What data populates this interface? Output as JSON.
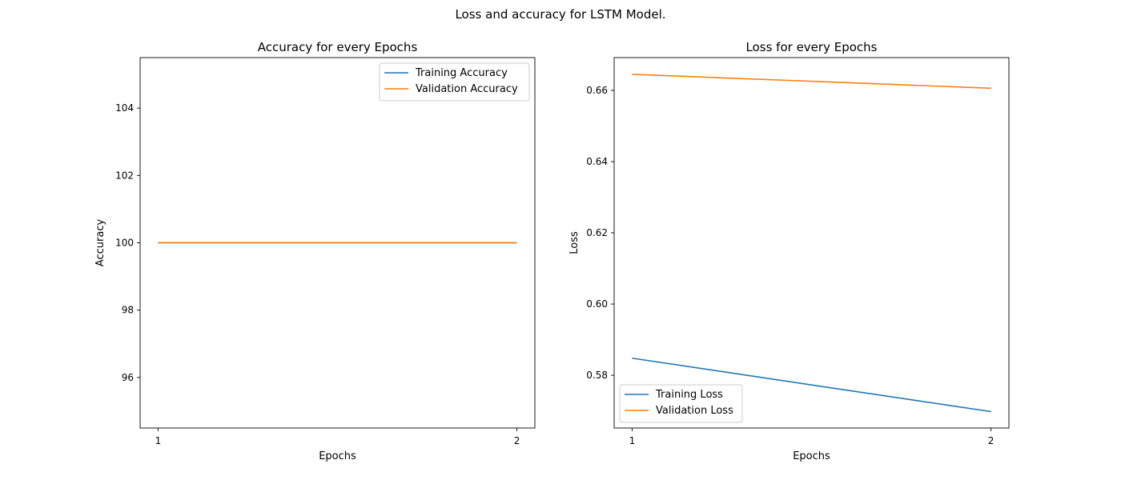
{
  "figure": {
    "suptitle": "Loss and accuracy for LSTM Model."
  },
  "chart_data": [
    {
      "type": "line",
      "title": "Accuracy for every Epochs",
      "xlabel": "Epochs",
      "ylabel": "Accuracy",
      "x": [
        1,
        2
      ],
      "xticks": [
        "1",
        "2"
      ],
      "xlim": [
        0.95,
        2.05
      ],
      "ylim": [
        94.5,
        105.5
      ],
      "yticks": [
        96,
        98,
        100,
        102,
        104
      ],
      "legend": "upper right",
      "grid": false,
      "series": [
        {
          "name": "Training Accuracy",
          "values": [
            100,
            100
          ],
          "color": "#1f77b4"
        },
        {
          "name": "Validation Accuracy",
          "values": [
            100,
            100
          ],
          "color": "#ff7f0e"
        }
      ]
    },
    {
      "type": "line",
      "title": "Loss for every Epochs",
      "xlabel": "Epochs",
      "ylabel": "Loss",
      "x": [
        1,
        2
      ],
      "xticks": [
        "1",
        "2"
      ],
      "xlim": [
        0.95,
        2.05
      ],
      "ylim": [
        0.5652,
        0.6692
      ],
      "yticks": [
        0.58,
        0.6,
        0.62,
        0.64,
        0.66
      ],
      "legend": "lower left",
      "grid": false,
      "series": [
        {
          "name": "Training Loss",
          "values": [
            0.5848,
            0.5698
          ],
          "color": "#1f77b4"
        },
        {
          "name": "Validation Loss",
          "values": [
            0.6645,
            0.6606
          ],
          "color": "#ff7f0e"
        }
      ]
    }
  ]
}
